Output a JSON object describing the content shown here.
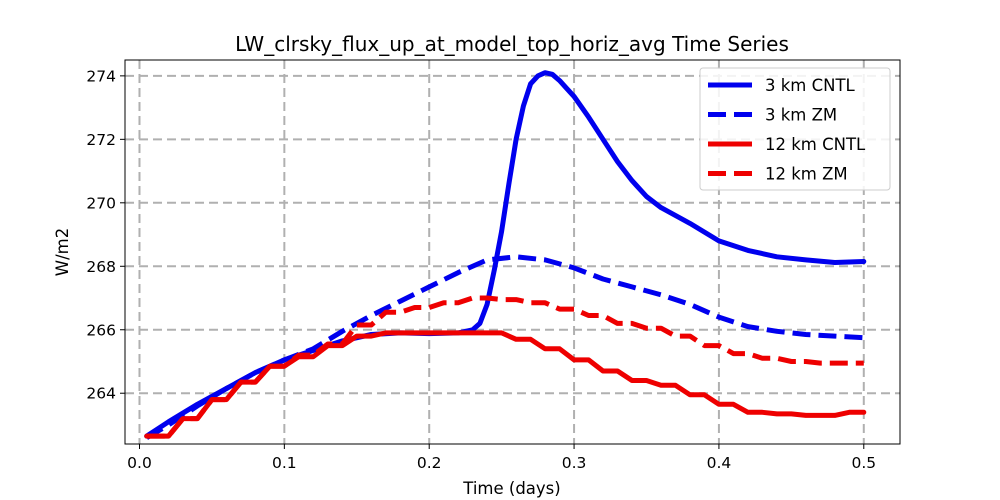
{
  "chart_data": {
    "type": "line",
    "title": "LW_clrsky_flux_up_at_model_top_horiz_avg Time Series",
    "xlabel": "Time (days)",
    "ylabel": "W/m2",
    "xlim": [
      -0.01,
      0.525
    ],
    "ylim": [
      262.4,
      274.5
    ],
    "xticks": [
      0.0,
      0.1,
      0.2,
      0.3,
      0.4,
      0.5
    ],
    "xtick_labels": [
      "0.0",
      "0.1",
      "0.2",
      "0.3",
      "0.4",
      "0.5"
    ],
    "yticks": [
      264,
      266,
      268,
      270,
      272,
      274
    ],
    "ytick_labels": [
      "264",
      "266",
      "268",
      "270",
      "272",
      "274"
    ],
    "grid": true,
    "legend_position": "top-right",
    "series": [
      {
        "name": "3 km CNTL",
        "color": "#0000ee",
        "dash": "solid",
        "step": false,
        "x": [
          0.005,
          0.02,
          0.04,
          0.06,
          0.08,
          0.1,
          0.12,
          0.14,
          0.16,
          0.18,
          0.2,
          0.22,
          0.23,
          0.235,
          0.24,
          0.245,
          0.25,
          0.255,
          0.26,
          0.265,
          0.27,
          0.275,
          0.28,
          0.285,
          0.29,
          0.295,
          0.3,
          0.31,
          0.32,
          0.33,
          0.34,
          0.35,
          0.36,
          0.38,
          0.4,
          0.42,
          0.44,
          0.46,
          0.48,
          0.5
        ],
        "values": [
          262.65,
          263.1,
          263.65,
          264.15,
          264.65,
          265.05,
          265.35,
          265.65,
          265.85,
          265.9,
          265.88,
          265.9,
          266.0,
          266.2,
          266.8,
          267.9,
          269.1,
          270.6,
          272.0,
          273.05,
          273.75,
          274.0,
          274.1,
          274.05,
          273.85,
          273.6,
          273.35,
          272.7,
          272.0,
          271.3,
          270.7,
          270.2,
          269.85,
          269.35,
          268.8,
          268.5,
          268.3,
          268.2,
          268.12,
          268.15
        ]
      },
      {
        "name": "3 km ZM",
        "color": "#0000ee",
        "dash": "dashed",
        "step": false,
        "x": [
          0.005,
          0.02,
          0.04,
          0.06,
          0.08,
          0.1,
          0.12,
          0.14,
          0.16,
          0.18,
          0.2,
          0.22,
          0.24,
          0.26,
          0.28,
          0.3,
          0.32,
          0.34,
          0.36,
          0.38,
          0.4,
          0.42,
          0.44,
          0.46,
          0.48,
          0.5
        ],
        "values": [
          262.6,
          263.0,
          263.6,
          264.15,
          264.65,
          265.05,
          265.4,
          265.95,
          266.45,
          266.9,
          267.35,
          267.8,
          268.2,
          268.3,
          268.2,
          267.95,
          267.6,
          267.35,
          267.1,
          266.8,
          266.4,
          266.1,
          265.95,
          265.85,
          265.8,
          265.75
        ]
      },
      {
        "name": "12 km CNTL",
        "color": "#ee0000",
        "dash": "solid",
        "step": true,
        "x": [
          0.005,
          0.02,
          0.03,
          0.04,
          0.05,
          0.06,
          0.07,
          0.08,
          0.09,
          0.1,
          0.11,
          0.12,
          0.13,
          0.14,
          0.15,
          0.16,
          0.17,
          0.18,
          0.19,
          0.2,
          0.21,
          0.22,
          0.23,
          0.24,
          0.25,
          0.26,
          0.27,
          0.28,
          0.29,
          0.3,
          0.31,
          0.32,
          0.33,
          0.34,
          0.35,
          0.36,
          0.37,
          0.38,
          0.39,
          0.4,
          0.41,
          0.42,
          0.43,
          0.44,
          0.45,
          0.46,
          0.47,
          0.48,
          0.49,
          0.5
        ],
        "values": [
          262.65,
          262.65,
          263.2,
          263.2,
          263.8,
          263.8,
          264.35,
          264.35,
          264.85,
          264.85,
          265.15,
          265.15,
          265.5,
          265.5,
          265.8,
          265.8,
          265.9,
          265.9,
          265.9,
          265.9,
          265.9,
          265.9,
          265.9,
          265.9,
          265.9,
          265.7,
          265.7,
          265.4,
          265.4,
          265.05,
          265.05,
          264.7,
          264.7,
          264.4,
          264.4,
          264.25,
          264.25,
          263.95,
          263.95,
          263.65,
          263.65,
          263.4,
          263.4,
          263.35,
          263.35,
          263.3,
          263.3,
          263.3,
          263.4,
          263.4
        ]
      },
      {
        "name": "12 km ZM",
        "color": "#ee0000",
        "dash": "dashed",
        "step": true,
        "x": [
          0.005,
          0.02,
          0.03,
          0.04,
          0.05,
          0.06,
          0.07,
          0.08,
          0.09,
          0.1,
          0.11,
          0.12,
          0.13,
          0.14,
          0.15,
          0.16,
          0.17,
          0.18,
          0.19,
          0.2,
          0.21,
          0.22,
          0.23,
          0.24,
          0.25,
          0.26,
          0.27,
          0.28,
          0.29,
          0.3,
          0.31,
          0.32,
          0.33,
          0.34,
          0.35,
          0.36,
          0.37,
          0.38,
          0.39,
          0.4,
          0.41,
          0.42,
          0.43,
          0.44,
          0.45,
          0.46,
          0.47,
          0.48,
          0.49,
          0.5
        ],
        "values": [
          262.65,
          262.65,
          263.2,
          263.2,
          263.8,
          263.8,
          264.35,
          264.35,
          264.85,
          264.85,
          265.2,
          265.2,
          265.55,
          265.55,
          266.15,
          266.15,
          266.55,
          266.55,
          266.7,
          266.7,
          266.85,
          266.85,
          267.0,
          267.0,
          266.95,
          266.95,
          266.85,
          266.85,
          266.65,
          266.65,
          266.45,
          266.45,
          266.2,
          266.2,
          266.05,
          266.05,
          265.8,
          265.8,
          265.5,
          265.5,
          265.25,
          265.25,
          265.1,
          265.1,
          265.0,
          265.0,
          264.95,
          264.95,
          264.95,
          264.95
        ]
      }
    ]
  }
}
